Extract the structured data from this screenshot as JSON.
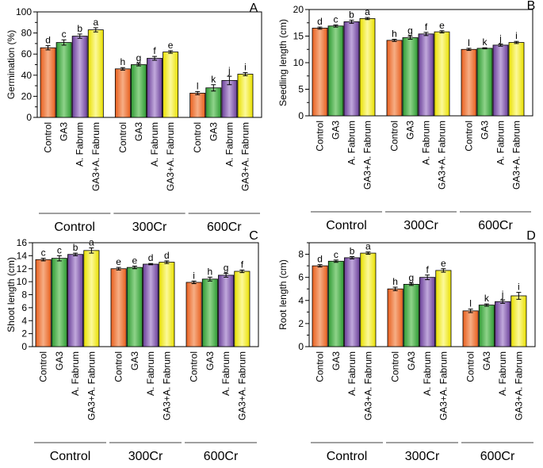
{
  "colors": {
    "Control": "#f07030",
    "GA3": "#3fae3f",
    "A. Fabrum": "#7b4ea6",
    "GA3+A. Fabrum": "#f2ec1c",
    "axis": "#000000"
  },
  "chart_data": [
    {
      "type": "bar",
      "panel": "A",
      "ylabel": "Germination (%)",
      "ylim": [
        0,
        100
      ],
      "yticks": [
        0,
        10,
        20,
        30,
        40,
        50,
        60,
        70,
        80,
        90,
        100
      ],
      "tick_labels": [
        "0",
        "",
        "20",
        "",
        "40",
        "",
        "60",
        "",
        "80",
        "",
        "100"
      ],
      "groups": [
        "Control",
        "300Cr",
        "600Cr"
      ],
      "categories": [
        "Control",
        "GA3",
        "A. Fabrum",
        "GA3+A. Fabrum"
      ],
      "values": [
        [
          66,
          71,
          77,
          83
        ],
        [
          46,
          50,
          56,
          62
        ],
        [
          23,
          28,
          35,
          41
        ]
      ],
      "errors": [
        [
          2,
          2.5,
          2,
          2
        ],
        [
          1.2,
          1.2,
          1.8,
          1.2
        ],
        [
          1.5,
          3,
          4,
          1.5
        ]
      ],
      "sig_letters": [
        [
          "d",
          "c",
          "b",
          "a"
        ],
        [
          "h",
          "g",
          "f",
          "e"
        ],
        [
          "l",
          "k",
          "j",
          "i"
        ]
      ]
    },
    {
      "type": "bar",
      "panel": "B",
      "ylabel": "Seedling length (cm)",
      "ylim": [
        0,
        20
      ],
      "yticks": [
        0,
        2.5,
        5,
        7.5,
        10,
        12.5,
        15,
        17.5,
        20
      ],
      "tick_labels": [
        "0",
        "",
        "5",
        "",
        "10",
        "",
        "15",
        "",
        "20"
      ],
      "groups": [
        "Control",
        "300Cr",
        "600Cr"
      ],
      "categories": [
        "Control",
        "GA3",
        "A. Fabrum",
        "GA3+A. Fabrum"
      ],
      "values": [
        [
          16.5,
          16.9,
          17.7,
          18.3
        ],
        [
          14.2,
          14.7,
          15.4,
          15.8
        ],
        [
          12.5,
          12.7,
          13.3,
          13.8
        ]
      ],
      "errors": [
        [
          0.2,
          0.2,
          0.3,
          0.2
        ],
        [
          0.2,
          0.3,
          0.3,
          0.2
        ],
        [
          0.2,
          0.1,
          0.2,
          0.2
        ]
      ],
      "sig_letters": [
        [
          "d",
          "c",
          "b",
          "a"
        ],
        [
          "h",
          "g",
          "f",
          "e"
        ],
        [
          "l",
          "k",
          "j",
          "i"
        ]
      ]
    },
    {
      "type": "bar",
      "panel": "C",
      "ylabel": "Shoot length (cm)",
      "ylim": [
        0,
        16
      ],
      "yticks": [
        0,
        2,
        4,
        6,
        8,
        10,
        12,
        14,
        16
      ],
      "tick_labels": [
        "0",
        "2",
        "4",
        "6",
        "8",
        "10",
        "12",
        "14",
        "16"
      ],
      "groups": [
        "Control",
        "300Cr",
        "600Cr"
      ],
      "categories": [
        "Control",
        "GA3",
        "A. Fabrum",
        "GA3+A. Fabrum"
      ],
      "values": [
        [
          13.4,
          13.6,
          14.2,
          14.8
        ],
        [
          12.0,
          12.2,
          12.7,
          13.0
        ],
        [
          9.9,
          10.4,
          11.0,
          11.6
        ]
      ],
      "errors": [
        [
          0.2,
          0.4,
          0.2,
          0.4
        ],
        [
          0.2,
          0.2,
          0.1,
          0.2
        ],
        [
          0.2,
          0.3,
          0.3,
          0.2
        ]
      ],
      "sig_letters": [
        [
          "c",
          "c",
          "b",
          "a"
        ],
        [
          "e",
          "e",
          "d",
          "d"
        ],
        [
          "i",
          "h",
          "g",
          "f"
        ]
      ]
    },
    {
      "type": "bar",
      "panel": "D",
      "ylabel": "Root length (cm)",
      "ylim": [
        0,
        9
      ],
      "yticks": [
        0,
        1,
        2,
        3,
        4,
        5,
        6,
        7,
        8,
        9
      ],
      "tick_labels": [
        "0",
        "",
        "2",
        "",
        "4",
        "",
        "6",
        "",
        "8",
        ""
      ],
      "groups": [
        "Control",
        "300Cr",
        "600Cr"
      ],
      "categories": [
        "Control",
        "GA3",
        "A. Fabrum",
        "GA3+A. Fabrum"
      ],
      "values": [
        [
          7.0,
          7.4,
          7.7,
          8.1
        ],
        [
          5.0,
          5.4,
          6.0,
          6.6
        ],
        [
          3.1,
          3.6,
          3.9,
          4.4
        ]
      ],
      "errors": [
        [
          0.1,
          0.1,
          0.1,
          0.1
        ],
        [
          0.15,
          0.1,
          0.2,
          0.15
        ],
        [
          0.15,
          0.1,
          0.15,
          0.3
        ]
      ],
      "sig_letters": [
        [
          "d",
          "c",
          "b",
          "a"
        ],
        [
          "h",
          "g",
          "f",
          "e"
        ],
        [
          "l",
          "k",
          "j",
          "i"
        ]
      ]
    }
  ]
}
